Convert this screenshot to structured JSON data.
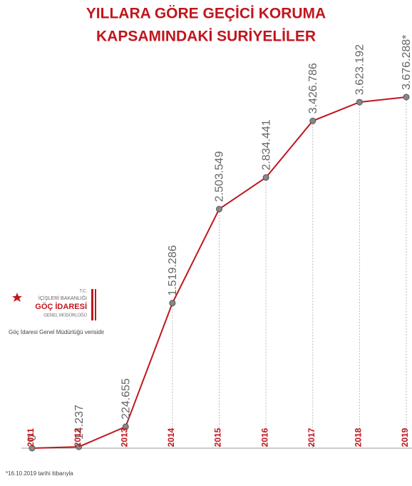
{
  "chart_data": {
    "type": "line",
    "title": [
      "YILLARA GÖRE GEÇİCİ KORUMA",
      "KAPSAMINDAKİ SURİYELİLER"
    ],
    "categories": [
      "2011",
      "2012",
      "2013",
      "2014",
      "2015",
      "2016",
      "2017",
      "2018",
      "2019"
    ],
    "series": [
      {
        "name": "Suriyeliler",
        "color": "#c0161d",
        "values": [
          0,
          14237,
          224655,
          1519286,
          2503549,
          2834441,
          3426786,
          3623192,
          3676288
        ],
        "value_labels": [
          "0",
          "14.237",
          "224.655",
          "1.519.286",
          "2.503.549",
          "2.834.441",
          "3.426.786",
          "3.623.192",
          "3.676.288*"
        ]
      }
    ],
    "logo": {
      "line1": "T.C.",
      "line2": "İÇİŞLERİ BAKANLIĞI",
      "line3": "GÖÇ İDARESİ",
      "line4": "GENEL MÜDÜRLÜĞÜ"
    },
    "source": "Göç İdaresi Genel Müdürlüğü verisidir",
    "note": "*16.10.2019 tarihi itibarıyla"
  }
}
